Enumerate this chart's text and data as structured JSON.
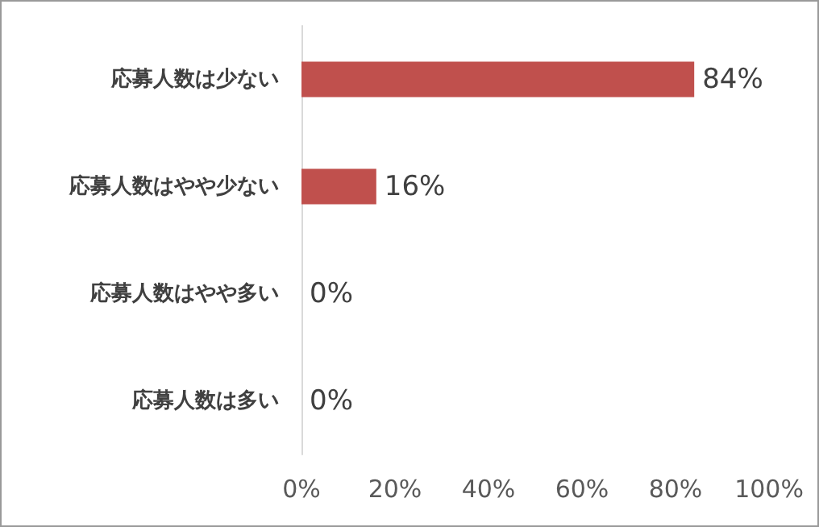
{
  "chart_data": {
    "type": "bar",
    "orientation": "horizontal",
    "categories": [
      "応募人数は少ない",
      "応募人数はやや少ない",
      "応募人数はやや多い",
      "応募人数は多い"
    ],
    "values": [
      84,
      16,
      0,
      0
    ],
    "color": "#c0504d",
    "value_labels": [
      "84%",
      "16%",
      "0%",
      "0%"
    ],
    "xlim": [
      0,
      100
    ],
    "xticks": [
      {
        "value": 0,
        "label": "0%"
      },
      {
        "value": 20,
        "label": "20%"
      },
      {
        "value": 40,
        "label": "40%"
      },
      {
        "value": 60,
        "label": "60%"
      },
      {
        "value": 80,
        "label": "80%"
      },
      {
        "value": 100,
        "label": "100%"
      }
    ],
    "grid": false
  }
}
